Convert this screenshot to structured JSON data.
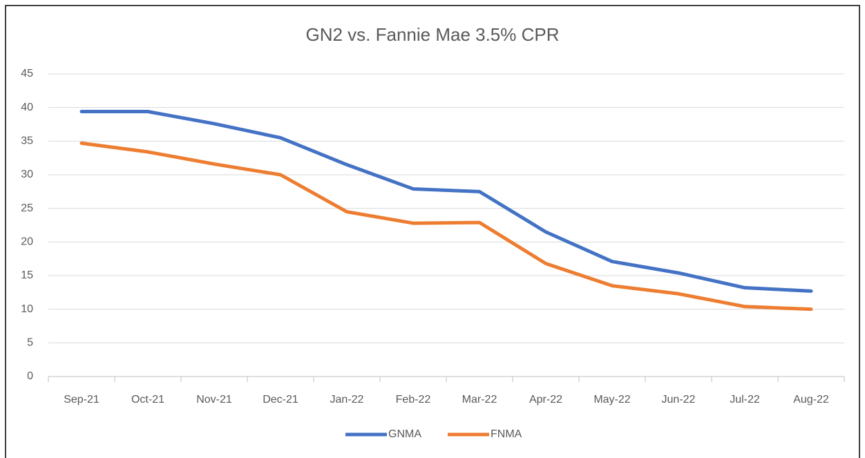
{
  "chart_data": {
    "type": "line",
    "title": "GN2 vs. Fannie Mae 3.5% CPR",
    "categories": [
      "Sep-21",
      "Oct-21",
      "Nov-21",
      "Dec-21",
      "Jan-22",
      "Feb-22",
      "Mar-22",
      "Apr-22",
      "May-22",
      "Jun-22",
      "Jul-22",
      "Aug-22"
    ],
    "series": [
      {
        "name": "GNMA",
        "color": "#4472c4",
        "values": [
          39.4,
          39.4,
          37.6,
          35.5,
          31.5,
          27.9,
          27.5,
          21.5,
          17.1,
          15.4,
          13.2,
          12.7
        ]
      },
      {
        "name": "FNMA",
        "color": "#ed7d31",
        "values": [
          34.7,
          33.4,
          31.6,
          30.0,
          24.5,
          22.8,
          22.9,
          16.8,
          13.5,
          12.3,
          10.4,
          10.0
        ]
      }
    ],
    "ylim": [
      0,
      45
    ],
    "yticks": [
      0,
      5,
      10,
      15,
      20,
      25,
      30,
      35,
      40,
      45
    ],
    "grid": true,
    "legend": "bottom"
  }
}
